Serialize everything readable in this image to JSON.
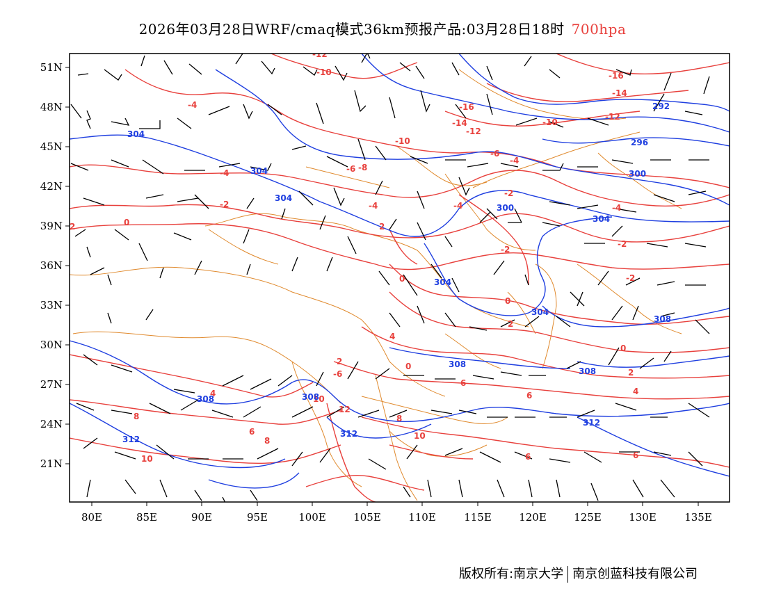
{
  "title": {
    "main": "2026年03月28日WRF/cmaq模式36km预报产品:03月28日18时",
    "level": "700hpa"
  },
  "footer": {
    "copyright": "版权所有:南京大学",
    "company": "南京创蓝科技有限公司"
  },
  "axes": {
    "lat_ticks": [
      "51N",
      "48N",
      "45N",
      "42N",
      "39N",
      "36N",
      "33N",
      "30N",
      "27N",
      "24N",
      "21N"
    ],
    "lon_ticks": [
      "80E",
      "85E",
      "90E",
      "95E",
      "100E",
      "105E",
      "110E",
      "115E",
      "120E",
      "125E",
      "130E",
      "135E"
    ]
  },
  "colors": {
    "geopotential": "#1f3fe0",
    "temperature": "#e8413d",
    "border": "#e08a2e",
    "wind": "#000000"
  },
  "map_data": {
    "geopotential_labels": [
      "304",
      "304",
      "304",
      "304",
      "300",
      "300",
      "296",
      "292",
      "304",
      "304",
      "308",
      "308",
      "308",
      "308",
      "308",
      "312",
      "312",
      "312"
    ],
    "temperature_labels": [
      "-12",
      "-10",
      "-16",
      "-16",
      "-14",
      "-14",
      "-12",
      "-12",
      "-10",
      "-10",
      "-6",
      "-8",
      "-6",
      "-4",
      "-4",
      "-4",
      "-4",
      "-2",
      "-2",
      "-4",
      "0",
      "-2",
      "2",
      "-2",
      "0",
      "0",
      "2",
      "4",
      "2",
      "-2",
      "-4",
      "-6",
      "0",
      "2",
      "6",
      "6",
      "6",
      "6",
      "8",
      "8",
      "8",
      "10",
      "10",
      "10",
      "12",
      "4",
      "2",
      "0",
      "4",
      "6"
    ]
  }
}
